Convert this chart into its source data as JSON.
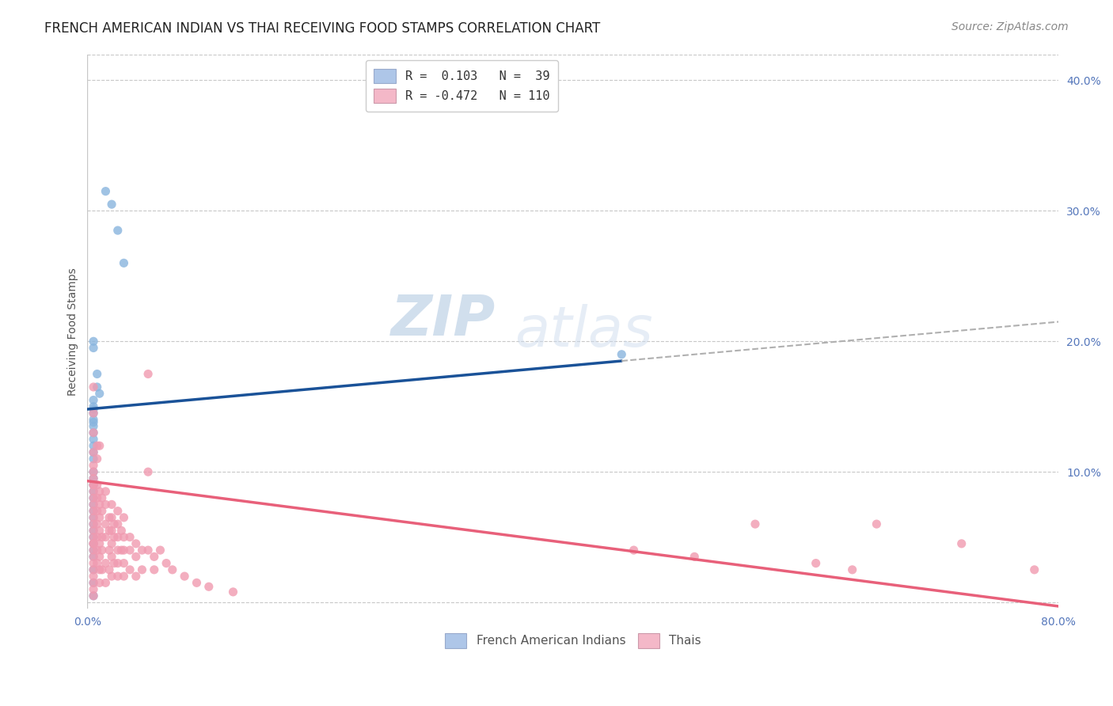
{
  "title": "FRENCH AMERICAN INDIAN VS THAI RECEIVING FOOD STAMPS CORRELATION CHART",
  "source": "Source: ZipAtlas.com",
  "ylabel": "Receiving Food Stamps",
  "xlim": [
    0.0,
    0.8
  ],
  "ylim": [
    -0.005,
    0.42
  ],
  "xticks": [
    0.0,
    0.1,
    0.2,
    0.3,
    0.4,
    0.5,
    0.6,
    0.7,
    0.8
  ],
  "xticklabels": [
    "0.0%",
    "",
    "",
    "",
    "",
    "",
    "",
    "",
    "80.0%"
  ],
  "yticks_right": [
    0.0,
    0.1,
    0.2,
    0.3,
    0.4
  ],
  "ytick_labels_right": [
    "",
    "10.0%",
    "20.0%",
    "30.0%",
    "40.0%"
  ],
  "grid_color": "#c8c8c8",
  "background_color": "#ffffff",
  "legend_label_1": "R =  0.103   N =  39",
  "legend_label_2": "R = -0.472   N = 110",
  "legend_color_1": "#aec6e8",
  "legend_color_2": "#f4b8c8",
  "scatter_color_1": "#88b4de",
  "scatter_color_2": "#f09ab0",
  "line_color_1": "#1a5298",
  "line_color_2": "#e8607a",
  "dashed_line_color": "#b0b0b0",
  "title_color": "#222222",
  "source_color": "#888888",
  "axis_color": "#5577bb",
  "watermark_color": "#c8d8ec",
  "blue_scatter_x": [
    0.015,
    0.02,
    0.025,
    0.03,
    0.005,
    0.005,
    0.008,
    0.008,
    0.01,
    0.005,
    0.005,
    0.005,
    0.005,
    0.005,
    0.005,
    0.005,
    0.005,
    0.005,
    0.005,
    0.005,
    0.005,
    0.005,
    0.005,
    0.005,
    0.005,
    0.005,
    0.005,
    0.005,
    0.005,
    0.005,
    0.005,
    0.005,
    0.005,
    0.005,
    0.005,
    0.005,
    0.005,
    0.005,
    0.44
  ],
  "blue_scatter_y": [
    0.315,
    0.305,
    0.285,
    0.26,
    0.2,
    0.195,
    0.175,
    0.165,
    0.16,
    0.155,
    0.15,
    0.148,
    0.145,
    0.14,
    0.138,
    0.135,
    0.13,
    0.125,
    0.12,
    0.115,
    0.11,
    0.1,
    0.095,
    0.09,
    0.085,
    0.08,
    0.075,
    0.07,
    0.065,
    0.06,
    0.055,
    0.05,
    0.045,
    0.04,
    0.035,
    0.025,
    0.015,
    0.005,
    0.19
  ],
  "pink_scatter_x": [
    0.005,
    0.005,
    0.005,
    0.005,
    0.005,
    0.005,
    0.005,
    0.005,
    0.005,
    0.005,
    0.005,
    0.005,
    0.005,
    0.005,
    0.005,
    0.005,
    0.005,
    0.005,
    0.005,
    0.005,
    0.005,
    0.005,
    0.005,
    0.005,
    0.005,
    0.008,
    0.008,
    0.008,
    0.008,
    0.008,
    0.008,
    0.008,
    0.008,
    0.008,
    0.01,
    0.01,
    0.01,
    0.01,
    0.01,
    0.01,
    0.01,
    0.01,
    0.01,
    0.012,
    0.012,
    0.012,
    0.012,
    0.012,
    0.015,
    0.015,
    0.015,
    0.015,
    0.015,
    0.015,
    0.018,
    0.018,
    0.018,
    0.018,
    0.02,
    0.02,
    0.02,
    0.02,
    0.02,
    0.02,
    0.022,
    0.022,
    0.022,
    0.025,
    0.025,
    0.025,
    0.025,
    0.025,
    0.025,
    0.028,
    0.028,
    0.03,
    0.03,
    0.03,
    0.03,
    0.03,
    0.035,
    0.035,
    0.035,
    0.04,
    0.04,
    0.04,
    0.045,
    0.045,
    0.05,
    0.05,
    0.05,
    0.055,
    0.055,
    0.06,
    0.065,
    0.07,
    0.08,
    0.09,
    0.1,
    0.12,
    0.45,
    0.5,
    0.55,
    0.6,
    0.63,
    0.65,
    0.72,
    0.78,
    0.005,
    0.005
  ],
  "pink_scatter_y": [
    0.095,
    0.09,
    0.085,
    0.08,
    0.075,
    0.07,
    0.065,
    0.06,
    0.055,
    0.05,
    0.045,
    0.04,
    0.035,
    0.03,
    0.025,
    0.02,
    0.015,
    0.01,
    0.005,
    0.165,
    0.145,
    0.13,
    0.115,
    0.105,
    0.1,
    0.12,
    0.11,
    0.09,
    0.08,
    0.07,
    0.06,
    0.05,
    0.04,
    0.03,
    0.12,
    0.085,
    0.075,
    0.065,
    0.055,
    0.045,
    0.035,
    0.025,
    0.015,
    0.08,
    0.07,
    0.05,
    0.04,
    0.025,
    0.085,
    0.075,
    0.06,
    0.05,
    0.03,
    0.015,
    0.065,
    0.055,
    0.04,
    0.025,
    0.075,
    0.065,
    0.055,
    0.045,
    0.035,
    0.02,
    0.06,
    0.05,
    0.03,
    0.07,
    0.06,
    0.05,
    0.04,
    0.03,
    0.02,
    0.055,
    0.04,
    0.065,
    0.05,
    0.04,
    0.03,
    0.02,
    0.05,
    0.04,
    0.025,
    0.045,
    0.035,
    0.02,
    0.04,
    0.025,
    0.175,
    0.1,
    0.04,
    0.035,
    0.025,
    0.04,
    0.03,
    0.025,
    0.02,
    0.015,
    0.012,
    0.008,
    0.04,
    0.035,
    0.06,
    0.03,
    0.025,
    0.06,
    0.045,
    0.025,
    0.09,
    0.045
  ],
  "blue_line_x0": 0.0,
  "blue_line_x1": 0.44,
  "blue_line_y0": 0.148,
  "blue_line_y1": 0.185,
  "dashed_line_x0": 0.44,
  "dashed_line_x1": 0.8,
  "dashed_line_y0": 0.185,
  "dashed_line_y1": 0.215,
  "pink_line_x0": 0.0,
  "pink_line_x1": 0.8,
  "pink_line_y0": 0.093,
  "pink_line_y1": -0.003,
  "title_fontsize": 12,
  "source_fontsize": 10,
  "axis_label_fontsize": 10,
  "tick_fontsize": 10,
  "legend_fontsize": 11
}
